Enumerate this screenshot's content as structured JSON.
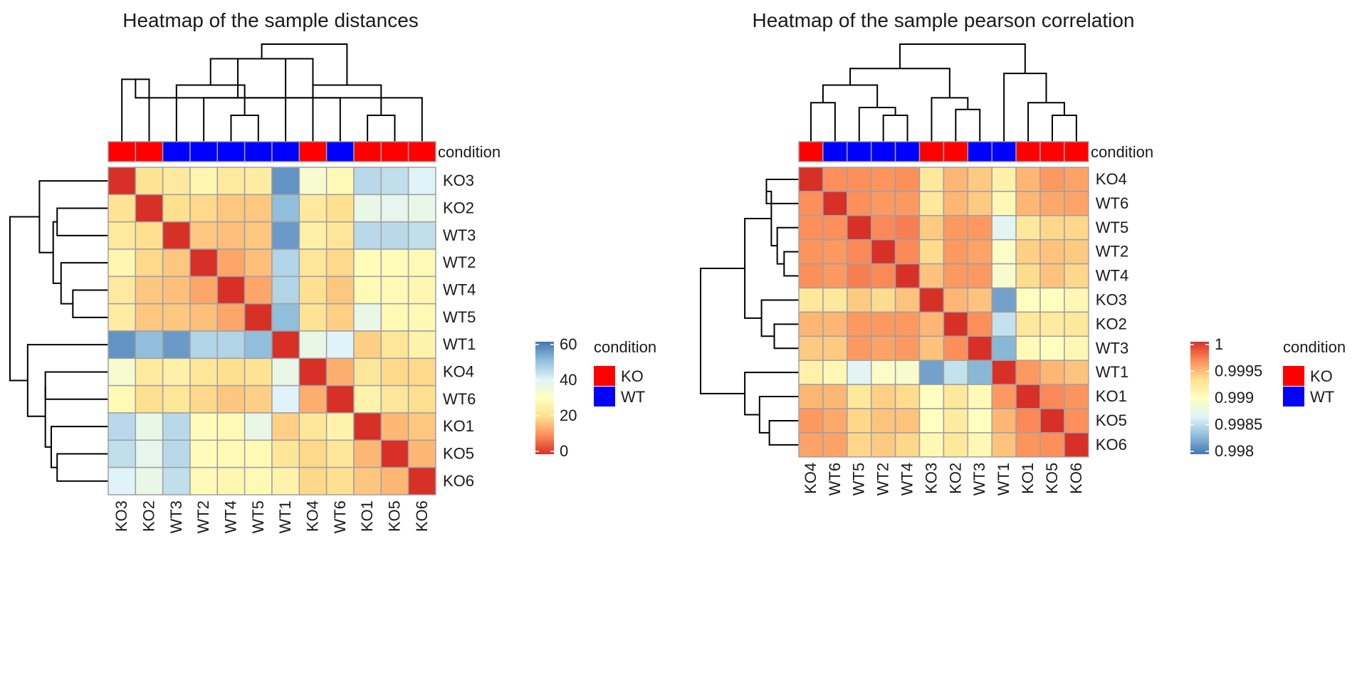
{
  "chart_data": [
    {
      "type": "heatmap",
      "title": "Heatmap of the sample distances",
      "rows": [
        "KO3",
        "KO2",
        "WT3",
        "WT2",
        "WT4",
        "WT5",
        "WT1",
        "KO4",
        "WT6",
        "KO1",
        "KO5",
        "KO6"
      ],
      "columns": [
        "KO3",
        "KO2",
        "WT3",
        "WT2",
        "WT4",
        "WT5",
        "WT1",
        "KO4",
        "WT6",
        "KO1",
        "KO5",
        "KO6"
      ],
      "annotation_label": "condition",
      "annotation": [
        "KO",
        "KO",
        "WT",
        "WT",
        "WT",
        "WT",
        "WT",
        "KO",
        "WT",
        "KO",
        "KO",
        "KO"
      ],
      "legend_title": "condition",
      "legend": [
        {
          "label": "KO",
          "color": "#ff0000"
        },
        {
          "label": "WT",
          "color": "#0000ff"
        }
      ],
      "color_scale": {
        "min": 0,
        "max": 60,
        "ticks": [
          60,
          40,
          20,
          0
        ],
        "colors": [
          "#d73027",
          "#fc8d59",
          "#fee090",
          "#ffffbf",
          "#e0f3f8",
          "#91bfdb",
          "#4575b4"
        ]
      },
      "values": [
        [
          0,
          21,
          23,
          27,
          23,
          24,
          56,
          33,
          28,
          45,
          44,
          40
        ],
        [
          21,
          0,
          20,
          19,
          17,
          17,
          50,
          23,
          20,
          37,
          38,
          37
        ],
        [
          23,
          20,
          0,
          17,
          16,
          17,
          55,
          25,
          22,
          45,
          45,
          44
        ],
        [
          27,
          19,
          17,
          0,
          13,
          16,
          46,
          22,
          19,
          29,
          29,
          28
        ],
        [
          23,
          17,
          16,
          13,
          0,
          13,
          46,
          20,
          17,
          28,
          28,
          27
        ],
        [
          24,
          17,
          17,
          16,
          13,
          0,
          50,
          21,
          18,
          37,
          28,
          28
        ],
        [
          56,
          50,
          55,
          46,
          46,
          50,
          0,
          37,
          40,
          18,
          22,
          26
        ],
        [
          33,
          23,
          25,
          22,
          20,
          21,
          37,
          0,
          14,
          22,
          19,
          19
        ],
        [
          28,
          20,
          22,
          19,
          17,
          18,
          40,
          14,
          0,
          26,
          22,
          20
        ],
        [
          45,
          37,
          45,
          29,
          28,
          37,
          18,
          22,
          26,
          0,
          15,
          17
        ],
        [
          44,
          38,
          45,
          29,
          28,
          28,
          22,
          19,
          22,
          15,
          0,
          15
        ],
        [
          40,
          37,
          44,
          28,
          27,
          28,
          26,
          19,
          20,
          17,
          15,
          0
        ]
      ]
    },
    {
      "type": "heatmap",
      "title": "Heatmap of the sample pearson correlation",
      "rows": [
        "KO4",
        "WT6",
        "WT5",
        "WT2",
        "WT4",
        "KO3",
        "KO2",
        "WT3",
        "WT1",
        "KO1",
        "KO5",
        "KO6"
      ],
      "columns": [
        "KO4",
        "WT6",
        "WT5",
        "WT2",
        "WT4",
        "KO3",
        "KO2",
        "WT3",
        "WT1",
        "KO1",
        "KO5",
        "KO6"
      ],
      "annotation_label": "condition",
      "annotation": [
        "KO",
        "WT",
        "WT",
        "WT",
        "WT",
        "KO",
        "KO",
        "WT",
        "WT",
        "KO",
        "KO",
        "KO"
      ],
      "legend_title": "condition",
      "legend": [
        {
          "label": "KO",
          "color": "#ff0000"
        },
        {
          "label": "WT",
          "color": "#0000ff"
        }
      ],
      "color_scale": {
        "min": 0.998,
        "max": 1,
        "ticks": [
          "1",
          "0.9995",
          "0.999",
          "0.9985",
          "0.998"
        ],
        "colors": [
          "#4575b4",
          "#91bfdb",
          "#e0f3f8",
          "#ffffbf",
          "#fee090",
          "#fc8d59",
          "#d73027"
        ]
      },
      "values": [
        [
          1,
          0.99966,
          0.99966,
          0.99964,
          0.99966,
          0.99925,
          0.9995,
          0.99942,
          0.99915,
          0.9995,
          0.99962,
          0.99958
        ],
        [
          0.99966,
          1,
          0.99966,
          0.99962,
          0.99962,
          0.99925,
          0.9995,
          0.99942,
          0.99908,
          0.9995,
          0.99956,
          0.99958
        ],
        [
          0.99966,
          0.99966,
          1,
          0.99968,
          0.99972,
          0.99942,
          0.99962,
          0.99962,
          0.9987,
          0.99925,
          0.99937,
          0.99937
        ],
        [
          0.99964,
          0.99962,
          0.99968,
          1,
          0.99968,
          0.99935,
          0.99962,
          0.99958,
          0.99895,
          0.9994,
          0.99945,
          0.99942
        ],
        [
          0.99966,
          0.99962,
          0.99972,
          0.99968,
          1,
          0.99945,
          0.99962,
          0.99962,
          0.99892,
          0.99935,
          0.99945,
          0.99937
        ],
        [
          0.99925,
          0.99925,
          0.99942,
          0.99935,
          0.99945,
          1,
          0.9995,
          0.99945,
          0.9982,
          0.999,
          0.999,
          0.99908
        ],
        [
          0.9995,
          0.9995,
          0.99962,
          0.99962,
          0.99962,
          0.9995,
          1,
          0.99966,
          0.99855,
          0.99925,
          0.99922,
          0.99925
        ],
        [
          0.99942,
          0.99942,
          0.99962,
          0.99958,
          0.99962,
          0.99945,
          0.99966,
          1,
          0.9983,
          0.99905,
          0.999,
          0.99908
        ],
        [
          0.99915,
          0.99908,
          0.9987,
          0.99895,
          0.99892,
          0.9982,
          0.99855,
          0.9983,
          1,
          0.99962,
          0.9995,
          0.99945
        ],
        [
          0.9995,
          0.9995,
          0.99925,
          0.9994,
          0.99935,
          0.999,
          0.99925,
          0.99905,
          0.99962,
          1,
          0.99968,
          0.99964
        ],
        [
          0.99962,
          0.99956,
          0.99937,
          0.99945,
          0.99945,
          0.999,
          0.99922,
          0.999,
          0.9995,
          0.99968,
          1,
          0.99966
        ],
        [
          0.99958,
          0.99958,
          0.99937,
          0.99942,
          0.99937,
          0.99908,
          0.99925,
          0.99908,
          0.99945,
          0.99964,
          0.99966,
          1
        ]
      ]
    }
  ]
}
